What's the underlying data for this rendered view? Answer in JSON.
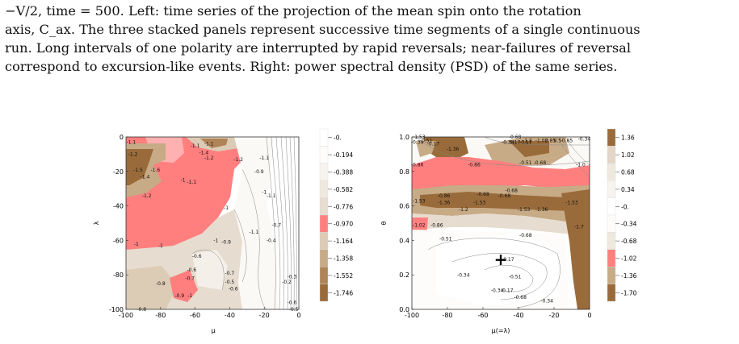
{
  "caption": {
    "lines": [
      "−V/2, time = 500. Left: time series of the projection of the mean spin onto the rotation",
      "axis, C_ax. The three stacked panels represent successive time segments of a single continuous",
      "run. Long intervals of one polarity are interrupted by rapid reversals; near-failures of reversal",
      "correspond to excursion-like events. Right: power spectral density (PSD) of the same series."
    ]
  },
  "chart_data": [
    {
      "type": "heatmap",
      "title": "",
      "xlabel": "μ",
      "ylabel": "λ",
      "xlim": [
        -100,
        0
      ],
      "ylim": [
        -100,
        0
      ],
      "xticks": [
        "-100",
        "-80",
        "-60",
        "-40",
        "-20",
        "0"
      ],
      "yticks": [
        "0",
        "-20",
        "-40",
        "-60",
        "-80",
        "-100"
      ],
      "legend": {
        "labels": [
          "-0.",
          "-0.194",
          "-0.388",
          "-0.582",
          "-0.776",
          "-0.970",
          "-1.164",
          "-1.358",
          "-1.552",
          "-1.746"
        ],
        "colors": [
          "#ffffff",
          "#fdfcfa",
          "#f7f3ee",
          "#efe8df",
          "#e6dccf",
          "#ff7f7f",
          "#dccbb5",
          "#c7aa86",
          "#b08457",
          "#9a6b3a"
        ]
      },
      "contour_labels": [
        {
          "text": "-1.1",
          "x": -97,
          "y": -4
        },
        {
          "text": "-1.1",
          "x": -60,
          "y": -6
        },
        {
          "text": "-1.1",
          "x": -52,
          "y": -5
        },
        {
          "text": "-1.2",
          "x": -96,
          "y": -11
        },
        {
          "text": "-1.4",
          "x": -55,
          "y": -10
        },
        {
          "text": "-1.2",
          "x": -52,
          "y": -13
        },
        {
          "text": "-1.2",
          "x": -35,
          "y": -14
        },
        {
          "text": "-1.1",
          "x": -20,
          "y": -13
        },
        {
          "text": "-1.5",
          "x": -93,
          "y": -20
        },
        {
          "text": "-1.6",
          "x": -83,
          "y": -20
        },
        {
          "text": "-1.4",
          "x": -89,
          "y": -24
        },
        {
          "text": "-0.9",
          "x": -23,
          "y": -21
        },
        {
          "text": "-1",
          "x": -67,
          "y": -26
        },
        {
          "text": "-1.1",
          "x": -62,
          "y": -27
        },
        {
          "text": "-1.2",
          "x": -88,
          "y": -35
        },
        {
          "text": "-1",
          "x": -42,
          "y": -42
        },
        {
          "text": "-1",
          "x": -20,
          "y": -33
        },
        {
          "text": "-1.1",
          "x": -16,
          "y": -35
        },
        {
          "text": "-1",
          "x": -48,
          "y": -61
        },
        {
          "text": "-0.7",
          "x": -13,
          "y": -52
        },
        {
          "text": "-1.1",
          "x": -26,
          "y": -56
        },
        {
          "text": "-0.4",
          "x": -16,
          "y": -61
        },
        {
          "text": "-1",
          "x": -94,
          "y": -63
        },
        {
          "text": "-1",
          "x": -80,
          "y": -64
        },
        {
          "text": "-0.9",
          "x": -42,
          "y": -62
        },
        {
          "text": "-0.6",
          "x": -59,
          "y": -70
        },
        {
          "text": "-0.6",
          "x": -62,
          "y": -78
        },
        {
          "text": "-0.7",
          "x": -63,
          "y": -83
        },
        {
          "text": "-0.7",
          "x": -40,
          "y": -80
        },
        {
          "text": "-0.5",
          "x": -40,
          "y": -85
        },
        {
          "text": "-0.6",
          "x": -38,
          "y": -89
        },
        {
          "text": "-0.3",
          "x": -4,
          "y": -82
        },
        {
          "text": "-0.2",
          "x": -7,
          "y": -85
        },
        {
          "text": "-0.8",
          "x": -80,
          "y": -86
        },
        {
          "text": "-0.9",
          "x": -69,
          "y": -93
        },
        {
          "text": "-1",
          "x": -63,
          "y": -93
        },
        {
          "text": "-0.8",
          "x": -91,
          "y": -101
        },
        {
          "text": "-0.6",
          "x": -4,
          "y": -97
        },
        {
          "text": "-0.5",
          "x": -3,
          "y": -101
        }
      ]
    },
    {
      "type": "heatmap",
      "title": "",
      "xlabel": "μ(=λ)",
      "ylabel": "θ",
      "xlim": [
        -100,
        0
      ],
      "ylim": [
        0.0,
        1.0
      ],
      "xticks": [
        "-100",
        "-80",
        "-60",
        "-40",
        "-20",
        "0"
      ],
      "yticks": [
        "1.0",
        "0.8",
        "0.6",
        "0.4",
        "0.2",
        "0.0"
      ],
      "marker": {
        "symbol": "+",
        "x": -50,
        "y": 0.29
      },
      "legend": {
        "labels": [
          "1.36",
          "1.02",
          "0.68",
          "0.34",
          "-0.",
          "-0.34",
          "-0.68",
          "-1.02",
          "-1.36",
          "-1.70"
        ],
        "colors": [
          "#9a6b3a",
          "#e3d6c6",
          "#efe8df",
          "#f7f3ee",
          "#ffffff",
          "#fdfcfa",
          "#efe8df",
          "#ff7f7f",
          "#c7aa86",
          "#9a6b3a"
        ]
      },
      "contour_labels": [
        {
          "text": "-1.53",
          "x": -96,
          "y": 0.99
        },
        {
          "text": "-0.34",
          "x": -97,
          "y": 0.96
        },
        {
          "text": "-0.51",
          "x": -92,
          "y": 0.97
        },
        {
          "text": "-0.17",
          "x": -88,
          "y": 0.95
        },
        {
          "text": "-1.36",
          "x": -77,
          "y": 0.92
        },
        {
          "text": "-0.68",
          "x": -42,
          "y": 0.99
        },
        {
          "text": "-0.17",
          "x": -36,
          "y": 0.96
        },
        {
          "text": "-0.34",
          "x": -46,
          "y": 0.96
        },
        {
          "text": "0.17",
          "x": -42,
          "y": 0.96
        },
        {
          "text": "-1.2",
          "x": -35,
          "y": 0.97
        },
        {
          "text": "-1.02",
          "x": -27,
          "y": 0.97
        },
        {
          "text": "0.85",
          "x": -22,
          "y": 0.97
        },
        {
          "text": "0.5",
          "x": -18,
          "y": 0.97
        },
        {
          "text": "-0.85",
          "x": -13,
          "y": 0.97
        },
        {
          "text": "-0.34",
          "x": -3,
          "y": 0.98
        },
        {
          "text": "-0.86",
          "x": -97,
          "y": 0.83
        },
        {
          "text": "-0.86",
          "x": -65,
          "y": 0.83
        },
        {
          "text": "-0.51",
          "x": -36,
          "y": 0.84
        },
        {
          "text": "-0.68",
          "x": -28,
          "y": 0.84
        },
        {
          "text": "-1.0",
          "x": -5,
          "y": 0.83
        },
        {
          "text": "-0.86",
          "x": -82,
          "y": 0.65
        },
        {
          "text": "-0.68",
          "x": -60,
          "y": 0.66
        },
        {
          "text": "-0.68",
          "x": -44,
          "y": 0.68
        },
        {
          "text": "-0.68",
          "x": -48,
          "y": 0.65
        },
        {
          "text": "-1.53",
          "x": -96,
          "y": 0.62
        },
        {
          "text": "-1.36",
          "x": -82,
          "y": 0.61
        },
        {
          "text": "-1.53",
          "x": -62,
          "y": 0.61
        },
        {
          "text": "-1.2",
          "x": -71,
          "y": 0.57
        },
        {
          "text": "-1.53",
          "x": -37,
          "y": 0.57
        },
        {
          "text": "-1.36",
          "x": -27,
          "y": 0.57
        },
        {
          "text": "-1.53",
          "x": -10,
          "y": 0.61
        },
        {
          "text": "-1.02",
          "x": -96,
          "y": 0.48
        },
        {
          "text": "-0.86",
          "x": -86,
          "y": 0.48
        },
        {
          "text": "-1.7",
          "x": -6,
          "y": 0.47
        },
        {
          "text": "-0.68",
          "x": -36,
          "y": 0.42
        },
        {
          "text": "-0.51",
          "x": -81,
          "y": 0.4
        },
        {
          "text": "-0.34",
          "x": -71,
          "y": 0.19
        },
        {
          "text": "-0.17",
          "x": -46,
          "y": 0.28
        },
        {
          "text": "-0.51",
          "x": -42,
          "y": 0.18
        },
        {
          "text": "-0.34",
          "x": -52,
          "y": 0.1
        },
        {
          "text": "0.17",
          "x": -46,
          "y": 0.1
        },
        {
          "text": "-0.68",
          "x": -39,
          "y": 0.06
        },
        {
          "text": "-0.34",
          "x": -24,
          "y": 0.04
        }
      ]
    }
  ]
}
